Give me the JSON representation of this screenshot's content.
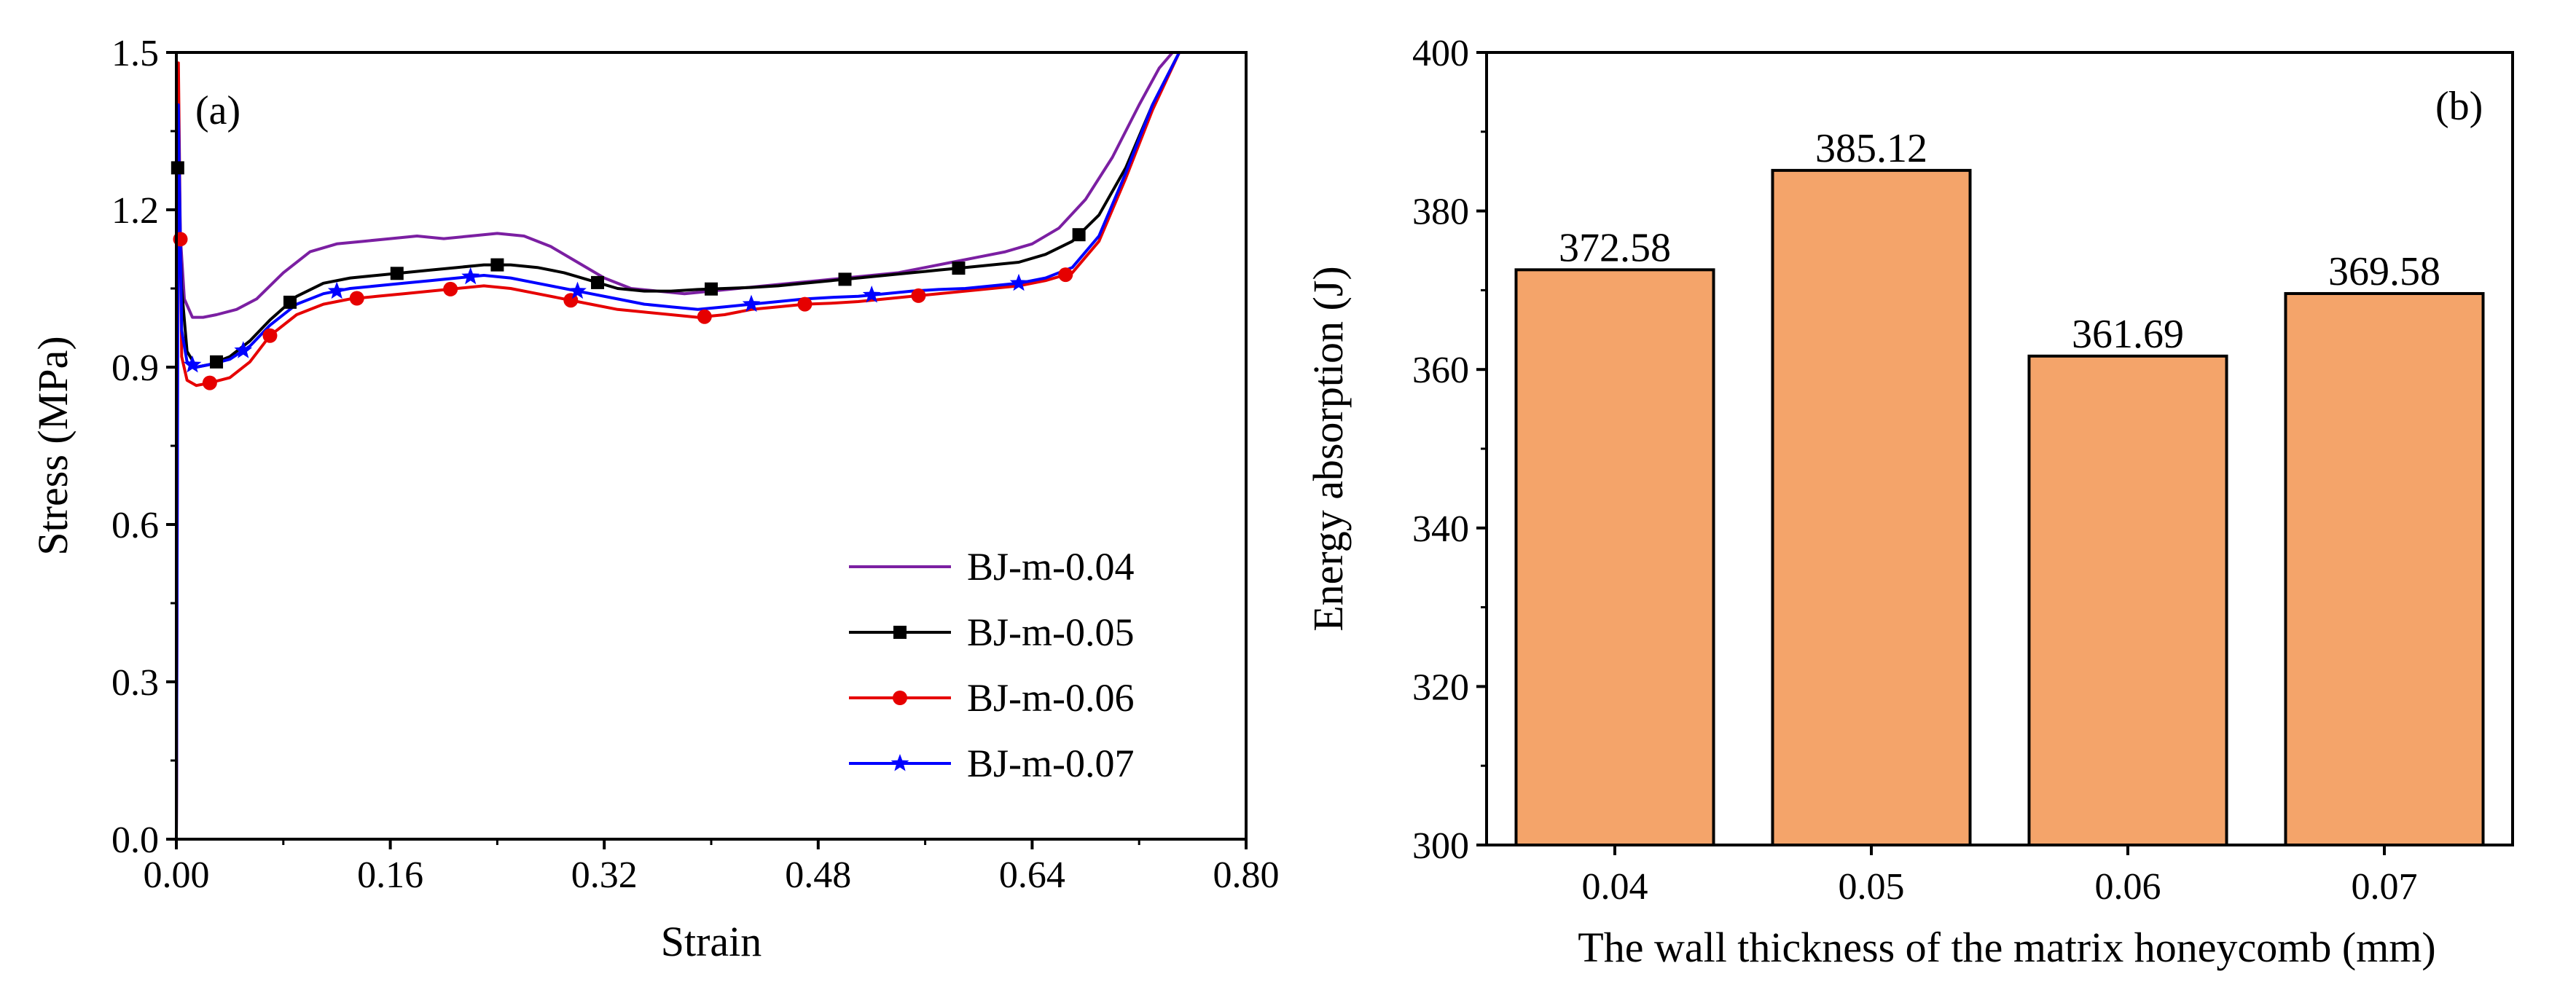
{
  "chart_data": [
    {
      "type": "line",
      "panel_label": "(a)",
      "xlabel": "Strain",
      "ylabel": "Stress (MPa)",
      "xlim": [
        0.0,
        0.8
      ],
      "ylim": [
        0.0,
        1.5
      ],
      "xticks": [
        "0.00",
        "0.16",
        "0.32",
        "0.48",
        "0.64",
        "0.80"
      ],
      "yticks": [
        "0.0",
        "0.3",
        "0.6",
        "0.9",
        "1.2",
        "1.5"
      ],
      "grid": false,
      "legend_position": "bottom-right",
      "series": [
        {
          "name": "BJ-m-0.04",
          "color": "#7B1FA2",
          "marker": "none",
          "x": [
            0.0,
            0.001,
            0.003,
            0.006,
            0.012,
            0.02,
            0.03,
            0.045,
            0.06,
            0.08,
            0.1,
            0.12,
            0.14,
            0.16,
            0.18,
            0.2,
            0.22,
            0.24,
            0.26,
            0.28,
            0.3,
            0.32,
            0.34,
            0.36,
            0.38,
            0.4,
            0.42,
            0.44,
            0.46,
            0.48,
            0.5,
            0.52,
            0.54,
            0.56,
            0.58,
            0.6,
            0.62,
            0.64,
            0.66,
            0.68,
            0.7,
            0.72,
            0.735,
            0.745
          ],
          "y": [
            0.0,
            1.35,
            1.15,
            1.03,
            0.995,
            0.995,
            1.0,
            1.01,
            1.03,
            1.08,
            1.12,
            1.135,
            1.14,
            1.145,
            1.15,
            1.145,
            1.15,
            1.155,
            1.15,
            1.13,
            1.1,
            1.07,
            1.05,
            1.045,
            1.04,
            1.045,
            1.05,
            1.055,
            1.06,
            1.065,
            1.07,
            1.075,
            1.08,
            1.09,
            1.1,
            1.11,
            1.12,
            1.135,
            1.165,
            1.22,
            1.3,
            1.4,
            1.47,
            1.5
          ]
        },
        {
          "name": "BJ-m-0.05",
          "color": "#000000",
          "marker": "square",
          "x": [
            0.0,
            0.001,
            0.004,
            0.008,
            0.015,
            0.025,
            0.04,
            0.055,
            0.07,
            0.09,
            0.11,
            0.13,
            0.15,
            0.17,
            0.19,
            0.21,
            0.23,
            0.25,
            0.27,
            0.29,
            0.31,
            0.33,
            0.35,
            0.37,
            0.39,
            0.41,
            0.43,
            0.45,
            0.47,
            0.49,
            0.51,
            0.53,
            0.55,
            0.57,
            0.59,
            0.61,
            0.63,
            0.65,
            0.67,
            0.69,
            0.71,
            0.73,
            0.75
          ],
          "y": [
            0.0,
            1.28,
            1.05,
            0.93,
            0.9,
            0.905,
            0.92,
            0.95,
            0.99,
            1.035,
            1.06,
            1.07,
            1.075,
            1.08,
            1.085,
            1.09,
            1.095,
            1.095,
            1.09,
            1.08,
            1.065,
            1.05,
            1.045,
            1.045,
            1.048,
            1.05,
            1.052,
            1.055,
            1.06,
            1.065,
            1.07,
            1.075,
            1.08,
            1.085,
            1.09,
            1.095,
            1.1,
            1.115,
            1.14,
            1.19,
            1.28,
            1.4,
            1.5
          ],
          "marker_x": [
            0.001,
            0.03,
            0.085,
            0.165,
            0.24,
            0.315,
            0.4,
            0.5,
            0.585,
            0.675
          ]
        },
        {
          "name": "BJ-m-0.06",
          "color": "#E60000",
          "marker": "circle",
          "x": [
            0.0,
            0.0015,
            0.004,
            0.008,
            0.015,
            0.025,
            0.04,
            0.055,
            0.07,
            0.09,
            0.11,
            0.13,
            0.15,
            0.17,
            0.19,
            0.21,
            0.23,
            0.25,
            0.27,
            0.29,
            0.31,
            0.33,
            0.35,
            0.37,
            0.39,
            0.41,
            0.43,
            0.45,
            0.47,
            0.49,
            0.51,
            0.53,
            0.55,
            0.57,
            0.59,
            0.61,
            0.63,
            0.65,
            0.67,
            0.69,
            0.71,
            0.73,
            0.75
          ],
          "y": [
            0.0,
            1.48,
            0.92,
            0.875,
            0.865,
            0.87,
            0.88,
            0.91,
            0.96,
            1.0,
            1.02,
            1.03,
            1.035,
            1.04,
            1.045,
            1.05,
            1.055,
            1.05,
            1.04,
            1.03,
            1.02,
            1.01,
            1.005,
            1.0,
            0.995,
            1.0,
            1.01,
            1.015,
            1.02,
            1.022,
            1.025,
            1.03,
            1.035,
            1.04,
            1.045,
            1.05,
            1.055,
            1.065,
            1.08,
            1.14,
            1.26,
            1.39,
            1.5
          ],
          "marker_x": [
            0.003,
            0.025,
            0.07,
            0.135,
            0.205,
            0.295,
            0.395,
            0.47,
            0.555,
            0.665
          ]
        },
        {
          "name": "BJ-m-0.07",
          "color": "#0000FF",
          "marker": "star",
          "x": [
            0.0,
            0.0015,
            0.004,
            0.008,
            0.015,
            0.025,
            0.04,
            0.055,
            0.07,
            0.09,
            0.11,
            0.13,
            0.15,
            0.17,
            0.19,
            0.21,
            0.23,
            0.25,
            0.27,
            0.29,
            0.31,
            0.33,
            0.35,
            0.37,
            0.39,
            0.41,
            0.43,
            0.45,
            0.47,
            0.49,
            0.51,
            0.53,
            0.55,
            0.57,
            0.59,
            0.61,
            0.63,
            0.65,
            0.67,
            0.69,
            0.71,
            0.73,
            0.75
          ],
          "y": [
            0.0,
            1.4,
            0.97,
            0.91,
            0.9,
            0.905,
            0.915,
            0.94,
            0.98,
            1.02,
            1.04,
            1.05,
            1.055,
            1.06,
            1.065,
            1.07,
            1.075,
            1.07,
            1.06,
            1.05,
            1.04,
            1.03,
            1.02,
            1.015,
            1.01,
            1.015,
            1.02,
            1.025,
            1.03,
            1.033,
            1.035,
            1.04,
            1.045,
            1.048,
            1.05,
            1.055,
            1.06,
            1.07,
            1.09,
            1.15,
            1.27,
            1.4,
            1.5
          ],
          "marker_x": [
            0.012,
            0.05,
            0.12,
            0.22,
            0.3,
            0.43,
            0.52,
            0.63
          ]
        }
      ]
    },
    {
      "type": "bar",
      "panel_label": "(b)",
      "xlabel": "The wall thickness of the matrix honeycomb (mm)",
      "ylabel": "Energy absorption (J)",
      "ylim": [
        300,
        400
      ],
      "yticks": [
        "300",
        "320",
        "340",
        "360",
        "380",
        "400"
      ],
      "grid": false,
      "bar_color": "#F4A46A",
      "categories": [
        "0.04",
        "0.05",
        "0.06",
        "0.07"
      ],
      "values": [
        372.58,
        385.12,
        361.69,
        369.58
      ],
      "value_labels": [
        "372.58",
        "385.12",
        "361.69",
        "369.58"
      ]
    }
  ]
}
